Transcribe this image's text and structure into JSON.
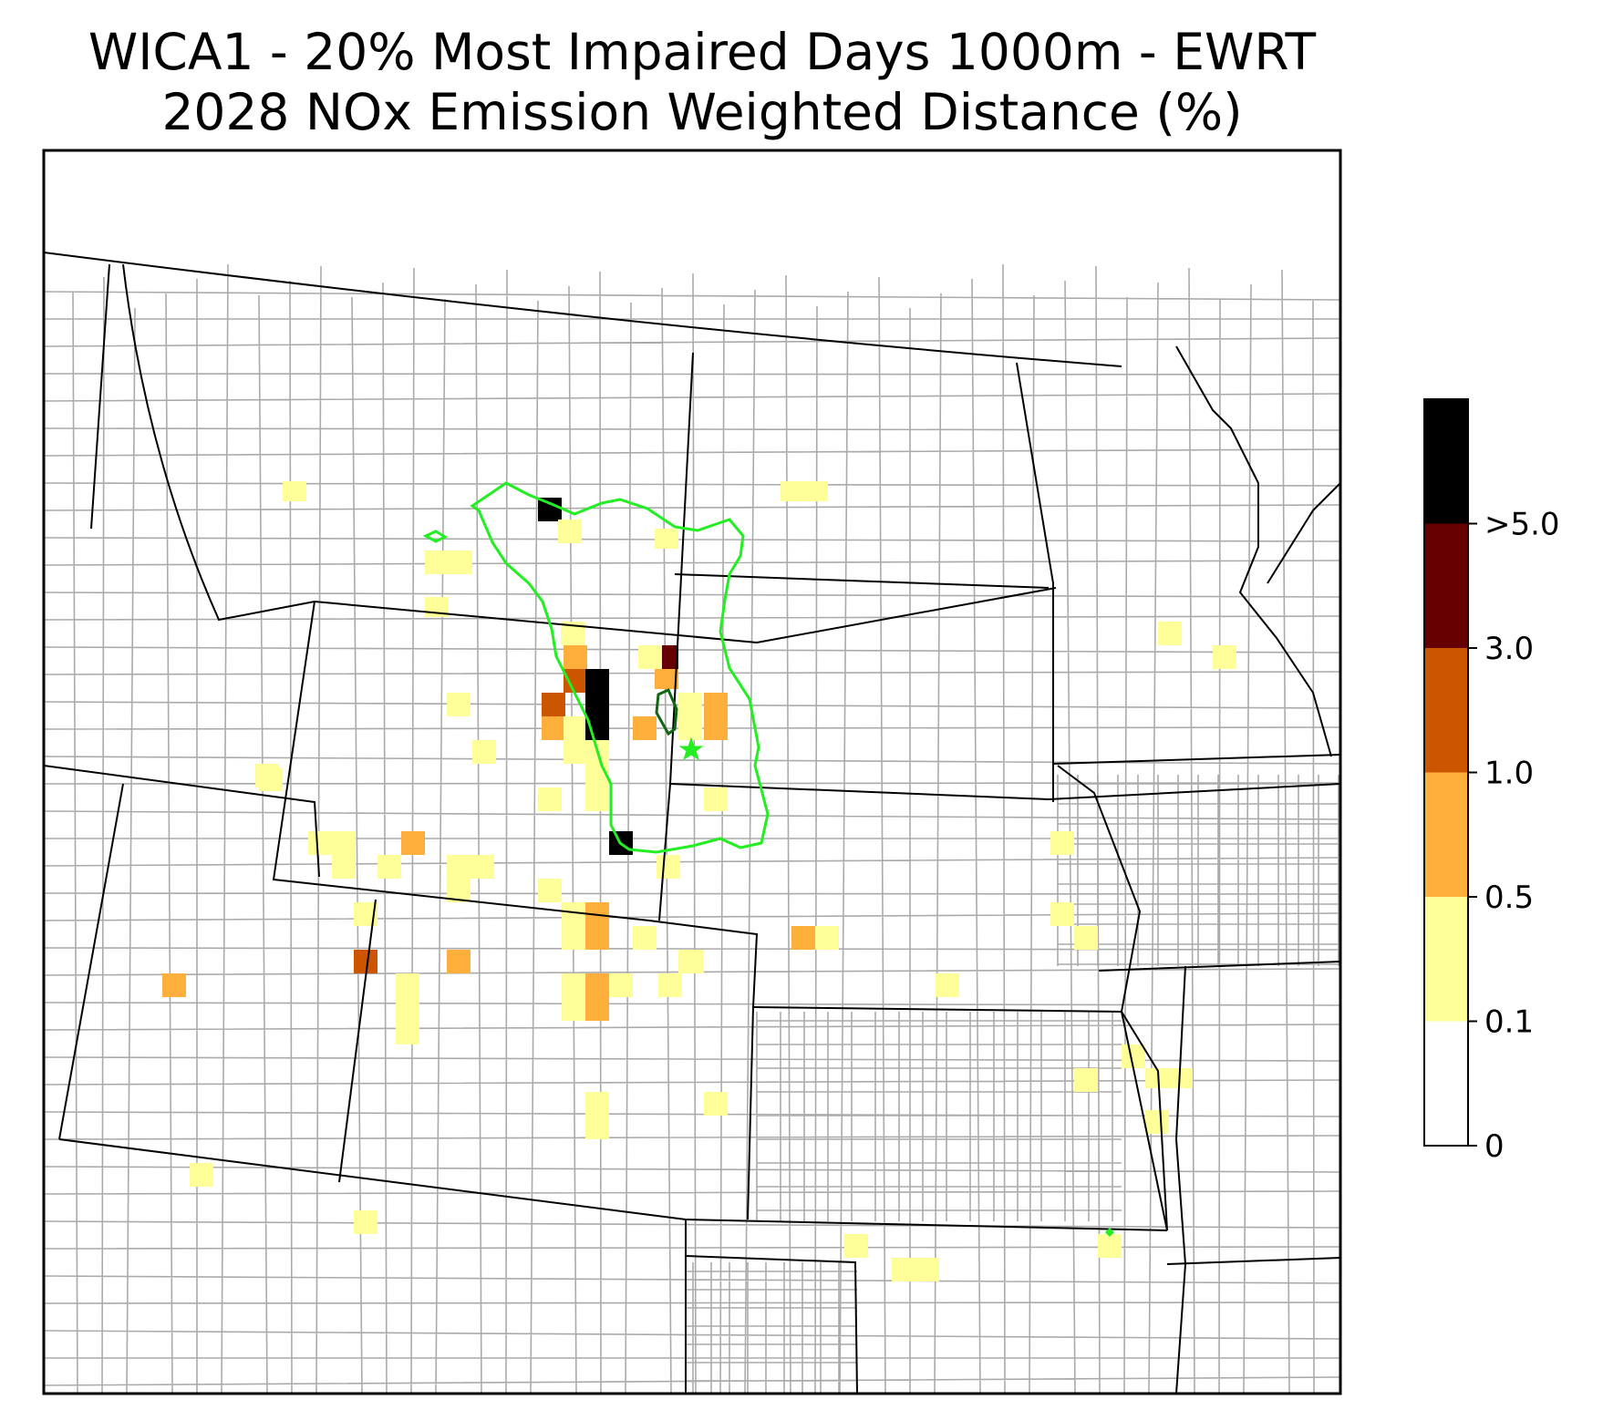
{
  "title": {
    "line1": "WICA1 - 20% Most Impaired Days 1000m - EWRT",
    "line2": "2028 NOx Emission Weighted Distance (%)"
  },
  "colorbar": {
    "bins": [
      {
        "label": "0",
        "color": "#ffffff"
      },
      {
        "label": "0.1",
        "color": "#ffff99"
      },
      {
        "label": "0.5",
        "color": "#fdae3b"
      },
      {
        "label": "1.0",
        "color": "#cc5500"
      },
      {
        "label": "3.0",
        "color": "#660000"
      },
      {
        "label": ">5.0",
        "color": "#000000"
      }
    ]
  },
  "colors": {
    "state_border": "#000000",
    "county_border": "#aaaaaa",
    "contour_outer": "#22ee22",
    "contour_inner": "#116611",
    "site_marker": "#22ee22"
  },
  "icons": {
    "site_marker": "star-icon"
  }
}
